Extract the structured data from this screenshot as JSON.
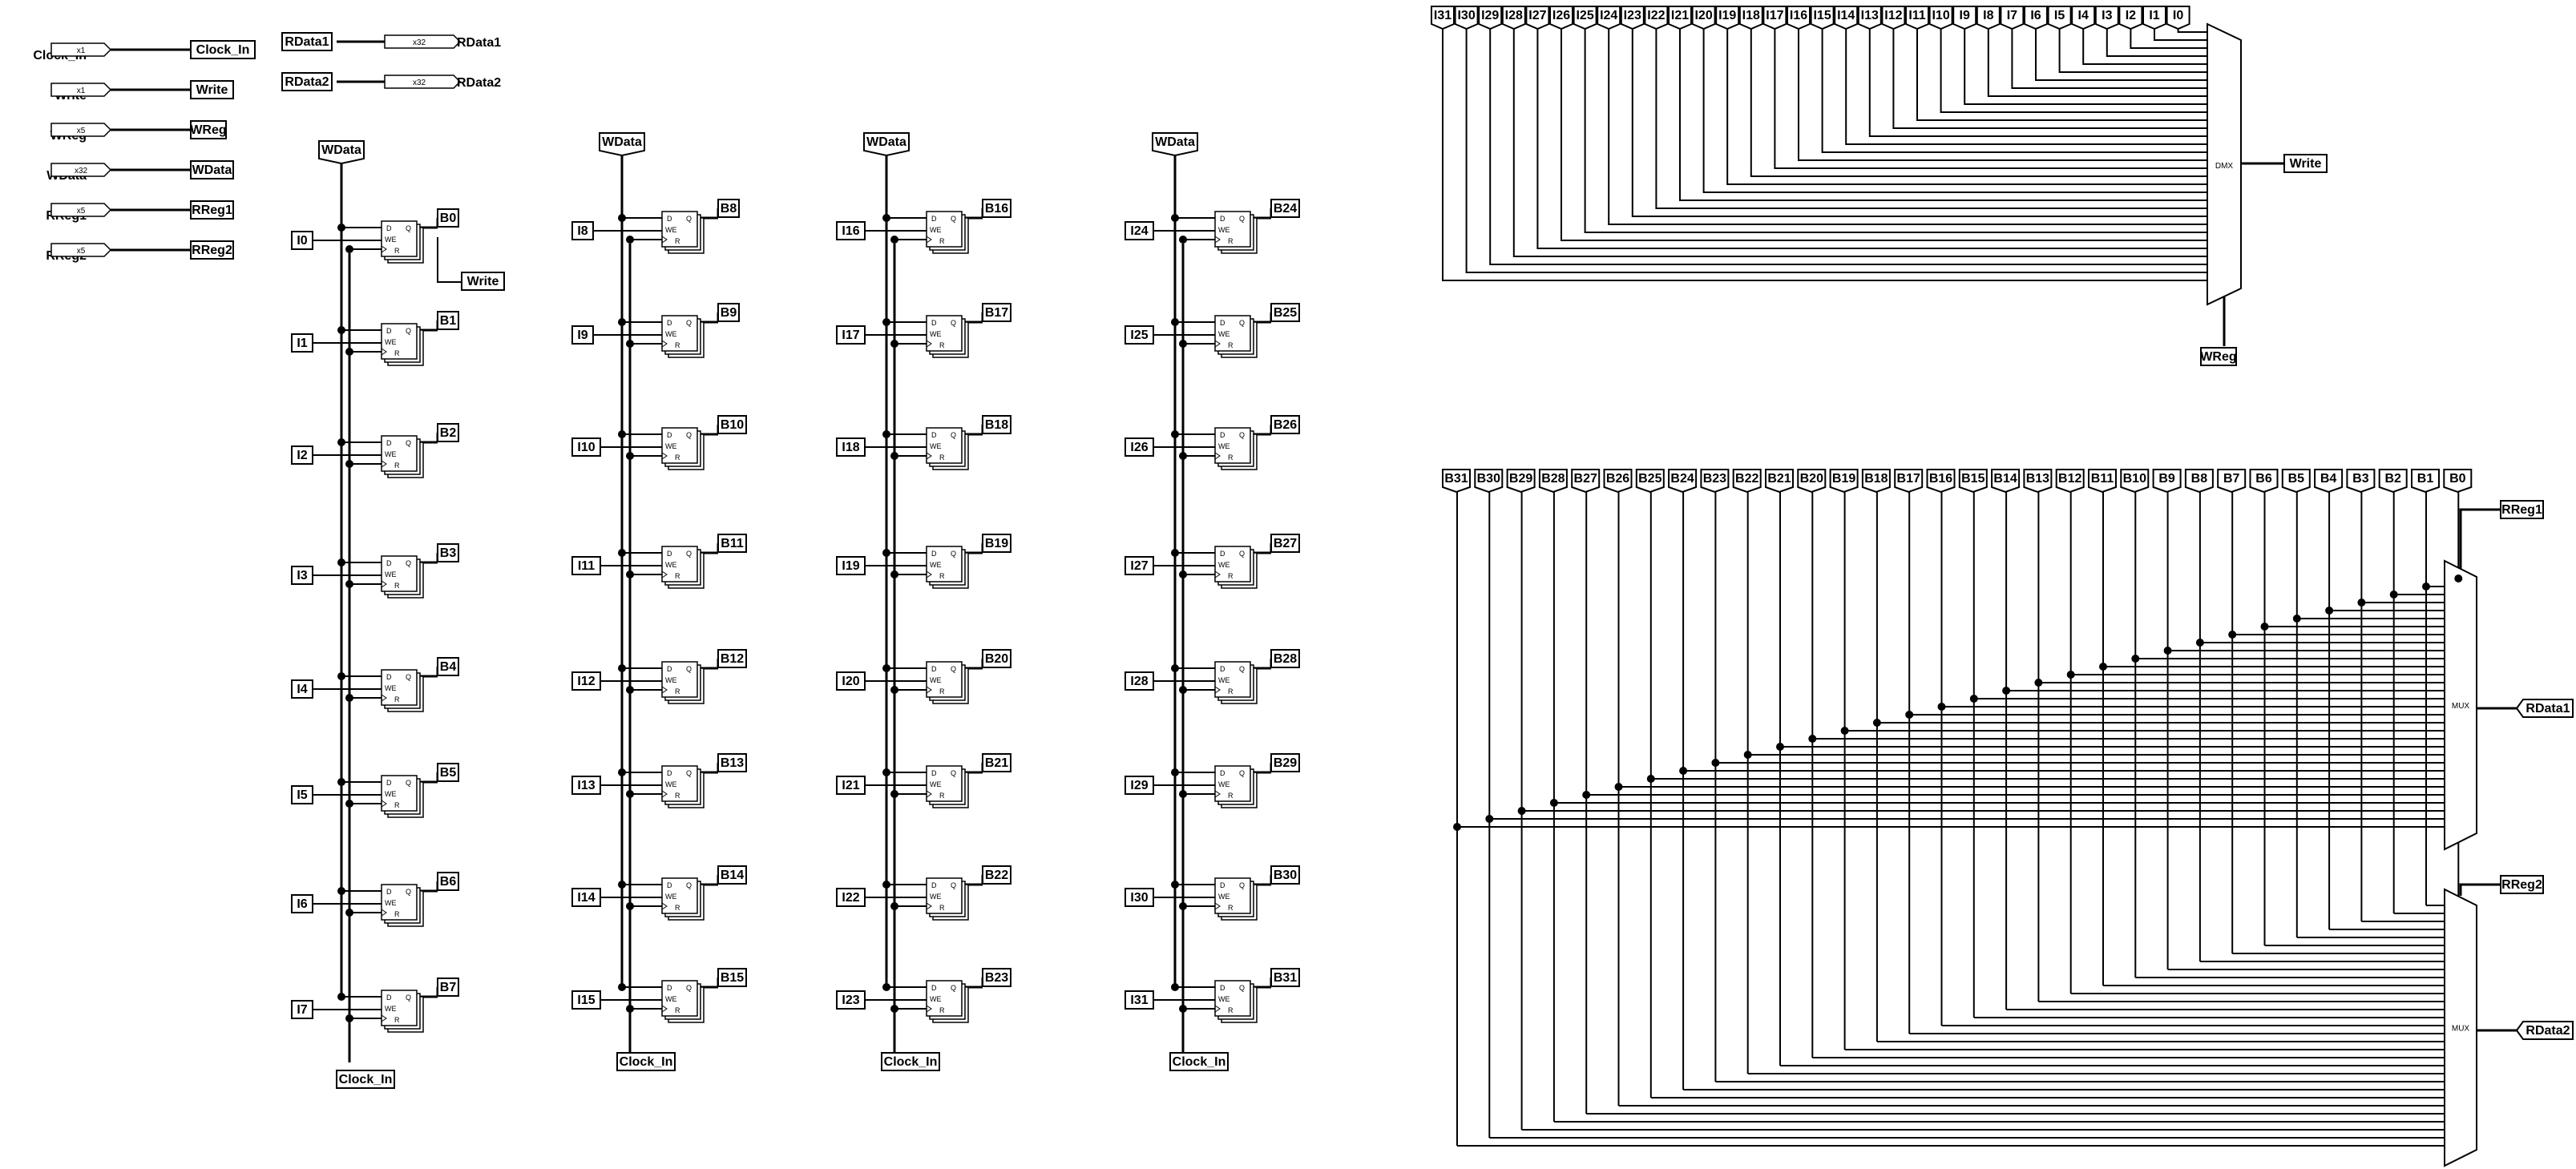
{
  "io_pins": [
    {
      "in": "Clock_In",
      "width": "x1",
      "out": "Clock_In"
    },
    {
      "in": "Write",
      "width": "x1",
      "out": "Write"
    },
    {
      "in": "WReg",
      "width": "x5",
      "out": "WReg"
    },
    {
      "in": "WData",
      "width": "x32",
      "out": "WData"
    },
    {
      "in": "RReg1",
      "width": "x5",
      "out": "RReg1"
    },
    {
      "in": "RReg2",
      "width": "x5",
      "out": "RReg2"
    }
  ],
  "output_pins": [
    {
      "in": "RData1",
      "width": "x32",
      "out": "RData1"
    },
    {
      "in": "RData2",
      "width": "x32",
      "out": "RData2"
    }
  ],
  "register_file": {
    "data_tag": "WData",
    "clock_tag": "Clock_In",
    "write_tag": "Write",
    "ff_labels": {
      "d": "D",
      "q": "Q",
      "we": "WE",
      "r": "R"
    },
    "enable_tags": [
      "I0",
      "I1",
      "I2",
      "I3",
      "I4",
      "I5",
      "I6",
      "I7",
      "I8",
      "I9",
      "I10",
      "I11",
      "I12",
      "I13",
      "I14",
      "I15",
      "I16",
      "I17",
      "I18",
      "I19",
      "I20",
      "I21",
      "I22",
      "I23",
      "I24",
      "I25",
      "I26",
      "I27",
      "I28",
      "I29",
      "I30",
      "I31"
    ],
    "output_tags": [
      "B0",
      "B1",
      "B2",
      "B3",
      "B4",
      "B5",
      "B6",
      "B7",
      "B8",
      "B9",
      "B10",
      "B11",
      "B12",
      "B13",
      "B14",
      "B15",
      "B16",
      "B17",
      "B18",
      "B19",
      "B20",
      "B21",
      "B22",
      "B23",
      "B24",
      "B25",
      "B26",
      "B27",
      "B28",
      "B29",
      "B30",
      "B31"
    ]
  },
  "demux": {
    "label": "DMX",
    "input_tag": "Write",
    "select_tag": "WReg",
    "top_tags": [
      "I31",
      "I30",
      "I29",
      "I28",
      "I27",
      "I26",
      "I25",
      "I24",
      "I23",
      "I22",
      "I21",
      "I20",
      "I19",
      "I18",
      "I17",
      "I16",
      "I15",
      "I14",
      "I13",
      "I12",
      "I11",
      "I10",
      "I9",
      "I8",
      "I7",
      "I6",
      "I5",
      "I4",
      "I3",
      "I2",
      "I1",
      "I0"
    ]
  },
  "mux1": {
    "label": "MUX",
    "select_tag": "RReg1",
    "output_tag": "RData1"
  },
  "mux2": {
    "label": "MUX",
    "select_tag": "RReg2",
    "output_tag": "RData2"
  },
  "mux_top_tags": [
    "B31",
    "B30",
    "B29",
    "B28",
    "B27",
    "B26",
    "B25",
    "B24",
    "B23",
    "B22",
    "B21",
    "B20",
    "B19",
    "B18",
    "B17",
    "B16",
    "B15",
    "B14",
    "B13",
    "B12",
    "B11",
    "B10",
    "B9",
    "B8",
    "B7",
    "B6",
    "B5",
    "B4",
    "B3",
    "B2",
    "B1",
    "B0"
  ]
}
